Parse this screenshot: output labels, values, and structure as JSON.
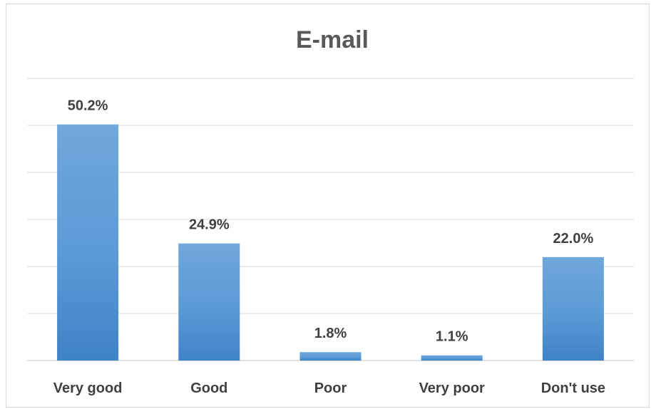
{
  "chart_data": {
    "type": "bar",
    "title": "E-mail",
    "categories": [
      "Very good",
      "Good",
      "Poor",
      "Very poor",
      "Don't use"
    ],
    "values": [
      50.2,
      24.9,
      1.8,
      1.1,
      22.0
    ],
    "value_labels": [
      "50.2%",
      "24.9%",
      "1.8%",
      "1.1%",
      "22.0%"
    ],
    "unit": "%",
    "ylim": [
      0,
      60
    ],
    "grid": true,
    "bar_color": "#5b9bd5",
    "gridline_color": "#d9d9d9"
  }
}
